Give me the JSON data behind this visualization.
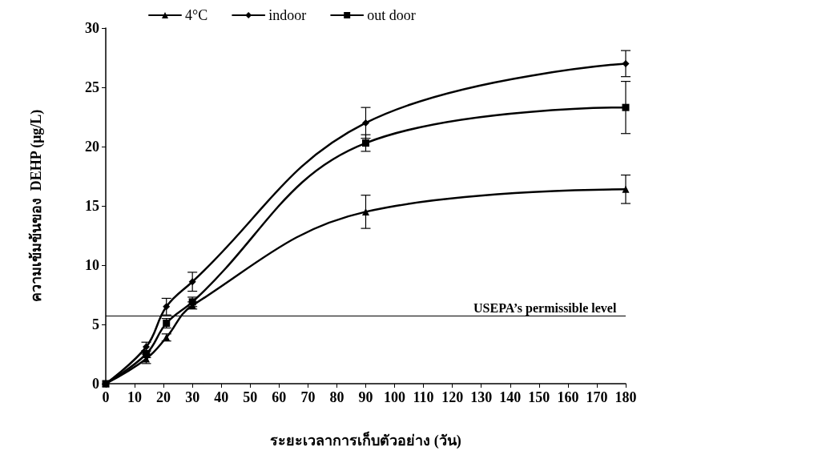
{
  "chart_data": {
    "type": "line",
    "xlabel": "ระยะเวลาการเก็บตัวอย่าง (วัน)",
    "ylabel": "ความเข้มข้นของ  DEHP (μg/L)",
    "x": [
      0,
      14,
      21,
      30,
      90,
      180
    ],
    "series": [
      {
        "name": "4°C",
        "color": "#000000",
        "marker": "triangle",
        "values": [
          0,
          2.1,
          3.9,
          6.6,
          14.5,
          16.4
        ],
        "errors": [
          null,
          0.4,
          0.3,
          0.3,
          1.4,
          1.2
        ]
      },
      {
        "name": "indoor",
        "color": "#000000",
        "marker": "diamond",
        "values": [
          0,
          3.1,
          6.5,
          8.6,
          22,
          27
        ],
        "errors": [
          null,
          0.4,
          0.7,
          0.8,
          1.3,
          1.1
        ]
      },
      {
        "name": "out door",
        "color": "#000000",
        "marker": "square",
        "values": [
          0,
          2.5,
          5.1,
          6.9,
          20.3,
          23.3
        ],
        "errors": [
          null,
          0.3,
          0.4,
          0.4,
          0.7,
          2.2
        ]
      }
    ],
    "xlim": [
      0,
      180
    ],
    "xticks": [
      0,
      10,
      20,
      30,
      40,
      50,
      60,
      70,
      80,
      90,
      100,
      110,
      120,
      130,
      140,
      150,
      160,
      170,
      180
    ],
    "ylim": [
      0,
      30
    ],
    "yticks": [
      0,
      5,
      10,
      15,
      20,
      25,
      30
    ],
    "ref_lines": [
      {
        "axis": "y",
        "value": 5.7,
        "label": "USEPA’s permissible level",
        "color": "#000000"
      }
    ],
    "grid": false,
    "legend": "top left",
    "line_style": "solid"
  }
}
